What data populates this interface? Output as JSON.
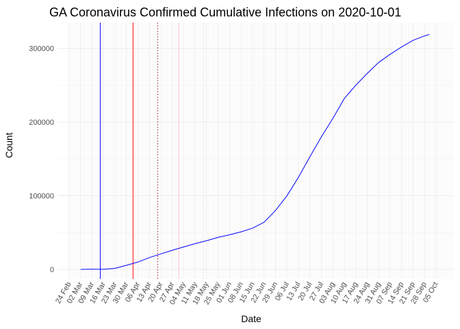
{
  "chart_data": {
    "type": "line",
    "title": "GA Coronavirus Confirmed Cumulative Infections on 2020-10-01",
    "xlabel": "Date",
    "ylabel": "Count",
    "x_range": [
      "2020-02-24",
      "2020-10-05"
    ],
    "ylim": [
      -13000,
      335000
    ],
    "grid": true,
    "y_ticks": [
      0,
      100000,
      200000,
      300000
    ],
    "y_tick_labels": [
      "0",
      "100000",
      "200000",
      "300000"
    ],
    "x_ticks": [
      "2020-02-24",
      "2020-03-02",
      "2020-03-09",
      "2020-03-16",
      "2020-03-23",
      "2020-03-30",
      "2020-04-06",
      "2020-04-13",
      "2020-04-20",
      "2020-04-27",
      "2020-05-04",
      "2020-05-11",
      "2020-05-18",
      "2020-05-25",
      "2020-06-01",
      "2020-06-08",
      "2020-06-15",
      "2020-06-22",
      "2020-06-29",
      "2020-07-06",
      "2020-07-13",
      "2020-07-20",
      "2020-07-27",
      "2020-08-03",
      "2020-08-10",
      "2020-08-17",
      "2020-08-24",
      "2020-08-31",
      "2020-09-07",
      "2020-09-14",
      "2020-09-21",
      "2020-09-28",
      "2020-10-05"
    ],
    "x_tick_labels": [
      "24 Feb",
      "02 Mar",
      "09 Mar",
      "16 Mar",
      "23 Mar",
      "30 Mar",
      "06 Apr",
      "13 Apr",
      "20 Apr",
      "27 Apr",
      "04 May",
      "11 May",
      "18 May",
      "25 May",
      "01 Jun",
      "08 Jun",
      "15 Jun",
      "22 Jun",
      "29 Jun",
      "06 Jul",
      "13 Jul",
      "20 Jul",
      "27 Jul",
      "03 Aug",
      "10 Aug",
      "17 Aug",
      "24 Aug",
      "31 Aug",
      "07 Sep",
      "14 Sep",
      "21 Sep",
      "28 Sep",
      "05 Oct"
    ],
    "series": [
      {
        "color": "#0000ff",
        "x": [
          "2020-03-02",
          "2020-03-09",
          "2020-03-16",
          "2020-03-23",
          "2020-03-30",
          "2020-04-06",
          "2020-04-13",
          "2020-04-20",
          "2020-04-27",
          "2020-05-04",
          "2020-05-11",
          "2020-05-18",
          "2020-05-25",
          "2020-06-01",
          "2020-06-08",
          "2020-06-15",
          "2020-06-22",
          "2020-06-29",
          "2020-07-06",
          "2020-07-13",
          "2020-07-20",
          "2020-07-27",
          "2020-08-03",
          "2020-08-10",
          "2020-08-17",
          "2020-08-24",
          "2020-08-31",
          "2020-09-07",
          "2020-09-14",
          "2020-09-21",
          "2020-09-28",
          "2020-10-01"
        ],
        "values": [
          2,
          200,
          120,
          1400,
          5500,
          10000,
          16000,
          21000,
          26000,
          30500,
          35000,
          39000,
          43500,
          47000,
          51000,
          56000,
          64000,
          80000,
          100000,
          125000,
          153000,
          180000,
          205000,
          232000,
          250000,
          266000,
          281000,
          292000,
          302000,
          311000,
          317000,
          319000
        ]
      }
    ],
    "vertical_lines": [
      {
        "x": "2020-03-14",
        "color": "#0000ff",
        "style": "solid"
      },
      {
        "x": "2020-04-03",
        "color": "#ff0000",
        "style": "solid"
      },
      {
        "x": "2020-04-18",
        "color": "#8b0000",
        "style": "dotted"
      },
      {
        "x": "2020-05-01",
        "color": "#ffc0cb",
        "style": "solid"
      },
      {
        "x": "2020-05-16",
        "color": "#d3d3d3",
        "style": "dotted"
      }
    ]
  }
}
